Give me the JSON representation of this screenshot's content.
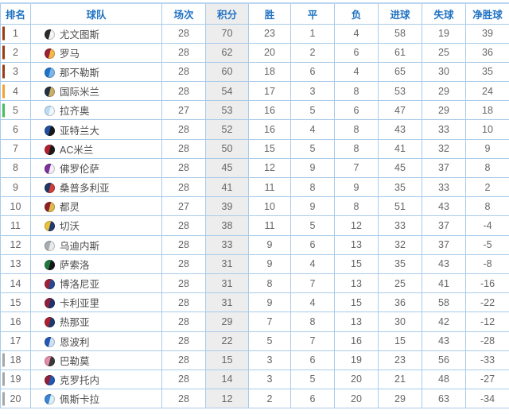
{
  "table": {
    "title": "league-standings",
    "columns": [
      {
        "key": "rank",
        "label": "排名"
      },
      {
        "key": "team",
        "label": "球队"
      },
      {
        "key": "played",
        "label": "场次"
      },
      {
        "key": "points",
        "label": "积分"
      },
      {
        "key": "won",
        "label": "胜"
      },
      {
        "key": "drawn",
        "label": "平"
      },
      {
        "key": "lost",
        "label": "负"
      },
      {
        "key": "gf",
        "label": "进球"
      },
      {
        "key": "ga",
        "label": "失球"
      },
      {
        "key": "gd",
        "label": "净胜球"
      }
    ],
    "rows": [
      {
        "rank": "1",
        "team": "尤文图斯",
        "played": "28",
        "points": "70",
        "won": "23",
        "drawn": "1",
        "lost": "4",
        "gf": "58",
        "ga": "19",
        "gd": "39",
        "bar": "#9c3b0f",
        "logo": [
          "#2b2b2b",
          "#f5f5f5"
        ]
      },
      {
        "rank": "2",
        "team": "罗马",
        "played": "28",
        "points": "62",
        "won": "20",
        "drawn": "2",
        "lost": "6",
        "gf": "61",
        "ga": "25",
        "gd": "36",
        "bar": "#9c3b0f",
        "logo": [
          "#9b2236",
          "#f3b94b"
        ]
      },
      {
        "rank": "3",
        "team": "那不勒斯",
        "played": "28",
        "points": "60",
        "won": "18",
        "drawn": "6",
        "lost": "4",
        "gf": "65",
        "ga": "30",
        "gd": "35",
        "bar": "#9c3b0f",
        "logo": [
          "#1d72c9",
          "#7db6e8"
        ]
      },
      {
        "rank": "4",
        "team": "国际米兰",
        "played": "28",
        "points": "54",
        "won": "17",
        "drawn": "3",
        "lost": "8",
        "gf": "53",
        "ga": "29",
        "gd": "24",
        "bar": "#f6a12e",
        "logo": [
          "#23313f",
          "#c9b06a"
        ]
      },
      {
        "rank": "5",
        "team": "拉齐奥",
        "played": "27",
        "points": "53",
        "won": "16",
        "drawn": "5",
        "lost": "6",
        "gf": "47",
        "ga": "29",
        "gd": "18",
        "bar": "#46bd57",
        "logo": [
          "#bcdcf5",
          "#eef7fd"
        ]
      },
      {
        "rank": "6",
        "team": "亚特兰大",
        "played": "28",
        "points": "52",
        "won": "16",
        "drawn": "4",
        "lost": "8",
        "gf": "43",
        "ga": "33",
        "gd": "10",
        "bar": null,
        "logo": [
          "#1f4f9e",
          "#16181d"
        ]
      },
      {
        "rank": "7",
        "team": "AC米兰",
        "played": "28",
        "points": "50",
        "won": "15",
        "drawn": "5",
        "lost": "8",
        "gf": "41",
        "ga": "32",
        "gd": "9",
        "bar": null,
        "logo": [
          "#b41f2e",
          "#1a1a1a"
        ]
      },
      {
        "rank": "8",
        "team": "佛罗伦萨",
        "played": "28",
        "points": "45",
        "won": "12",
        "drawn": "9",
        "lost": "7",
        "gf": "45",
        "ga": "37",
        "gd": "8",
        "bar": null,
        "logo": [
          "#7d2f9b",
          "#f2eef5"
        ]
      },
      {
        "rank": "9",
        "team": "桑普多利亚",
        "played": "28",
        "points": "41",
        "won": "11",
        "drawn": "8",
        "lost": "9",
        "gf": "35",
        "ga": "33",
        "gd": "2",
        "bar": null,
        "logo": [
          "#1b3a66",
          "#d23c3c"
        ]
      },
      {
        "rank": "10",
        "team": "都灵",
        "played": "27",
        "points": "39",
        "won": "10",
        "drawn": "9",
        "lost": "8",
        "gf": "51",
        "ga": "43",
        "gd": "8",
        "bar": null,
        "logo": [
          "#8c2126",
          "#e0b84f"
        ]
      },
      {
        "rank": "11",
        "team": "切沃",
        "played": "28",
        "points": "38",
        "won": "11",
        "drawn": "5",
        "lost": "12",
        "gf": "33",
        "ga": "37",
        "gd": "-4",
        "bar": null,
        "logo": [
          "#e8c237",
          "#243a74"
        ]
      },
      {
        "rank": "12",
        "team": "乌迪内斯",
        "played": "28",
        "points": "33",
        "won": "9",
        "drawn": "6",
        "lost": "13",
        "gf": "32",
        "ga": "37",
        "gd": "-5",
        "bar": null,
        "logo": [
          "#a8adb3",
          "#e8eaec"
        ]
      },
      {
        "rank": "13",
        "team": "萨索洛",
        "played": "28",
        "points": "31",
        "won": "9",
        "drawn": "4",
        "lost": "15",
        "gf": "35",
        "ga": "43",
        "gd": "-8",
        "bar": null,
        "logo": [
          "#1f7a3d",
          "#17181a"
        ]
      },
      {
        "rank": "14",
        "team": "博洛尼亚",
        "played": "28",
        "points": "31",
        "won": "8",
        "drawn": "7",
        "lost": "13",
        "gf": "25",
        "ga": "41",
        "gd": "-16",
        "bar": null,
        "logo": [
          "#a02038",
          "#254a8f"
        ]
      },
      {
        "rank": "15",
        "team": "卡利亚里",
        "played": "28",
        "points": "31",
        "won": "9",
        "drawn": "4",
        "lost": "15",
        "gf": "36",
        "ga": "58",
        "gd": "-22",
        "bar": null,
        "logo": [
          "#8f1f3c",
          "#20316b"
        ]
      },
      {
        "rank": "16",
        "team": "热那亚",
        "played": "28",
        "points": "29",
        "won": "7",
        "drawn": "8",
        "lost": "13",
        "gf": "30",
        "ga": "42",
        "gd": "-12",
        "bar": null,
        "logo": [
          "#b01f2e",
          "#1d3a6e"
        ]
      },
      {
        "rank": "17",
        "team": "恩波利",
        "played": "28",
        "points": "22",
        "won": "5",
        "drawn": "7",
        "lost": "16",
        "gf": "15",
        "ga": "43",
        "gd": "-28",
        "bar": null,
        "logo": [
          "#2257b5",
          "#cfe0f5"
        ]
      },
      {
        "rank": "18",
        "team": "巴勒莫",
        "played": "28",
        "points": "15",
        "won": "3",
        "drawn": "6",
        "lost": "19",
        "gf": "23",
        "ga": "56",
        "gd": "-33",
        "bar": "#a6a6a6",
        "logo": [
          "#e58cab",
          "#3a3a3a"
        ]
      },
      {
        "rank": "19",
        "team": "克罗托内",
        "played": "28",
        "points": "14",
        "won": "3",
        "drawn": "5",
        "lost": "20",
        "gf": "21",
        "ga": "48",
        "gd": "-27",
        "bar": "#a6a6a6",
        "logo": [
          "#8f2038",
          "#2257b5"
        ]
      },
      {
        "rank": "20",
        "team": "佩斯卡拉",
        "played": "28",
        "points": "12",
        "won": "2",
        "drawn": "6",
        "lost": "20",
        "gf": "29",
        "ga": "63",
        "gd": "-34",
        "bar": "#a6a6a6",
        "logo": [
          "#3a86d4",
          "#dceefc"
        ]
      }
    ],
    "zone_colors": {
      "champions_league": "#9c3b0f",
      "cl_qualifier": "#f6a12e",
      "europa_league": "#46bd57",
      "relegation": "#a6a6a6"
    },
    "accent_colors": {
      "header_text": "#2173c2",
      "grid_border": "#a9cbe9",
      "points_column_bg": "#ededed"
    }
  }
}
